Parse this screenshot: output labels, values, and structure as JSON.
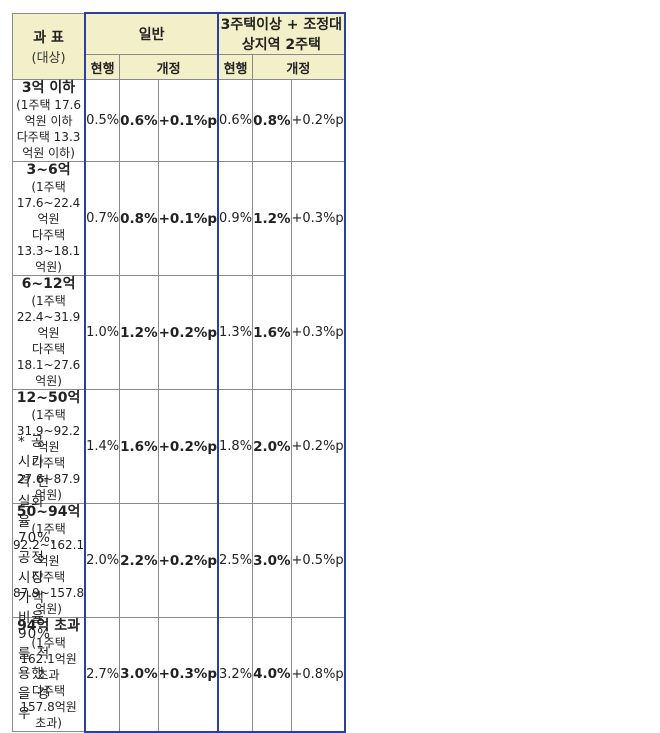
{
  "header": {
    "col_title": "과 표",
    "col_sub": "(대상)",
    "group1": "일반",
    "group2": "3주택이상 + 조정대상지역 2주택",
    "current": "현행",
    "revised": "개정"
  },
  "rows": [
    {
      "title": "3억 이하",
      "line1": "(1주택 17.6억원 이하",
      "line2": "다주택 13.3억원 이하)",
      "g_cur": "0.5%",
      "g_rev": "0.6%",
      "g_diff": "+0.1%p",
      "m_cur": "0.6%",
      "m_rev": "0.8%",
      "m_diff": "+0.2%p"
    },
    {
      "title": "3~6억",
      "line1": "(1주택 17.6~22.4억원",
      "line2": "다주택 13.3~18.1억원)",
      "g_cur": "0.7%",
      "g_rev": "0.8%",
      "g_diff": "+0.1%p",
      "m_cur": "0.9%",
      "m_rev": "1.2%",
      "m_diff": "+0.3%p"
    },
    {
      "title": "6~12억",
      "line1": "(1주택 22.4~31.9억원",
      "line2": "다주택 18.1~27.6억원)",
      "g_cur": "1.0%",
      "g_rev": "1.2%",
      "g_diff": "+0.2%p",
      "m_cur": "1.3%",
      "m_rev": "1.6%",
      "m_diff": "+0.3%p"
    },
    {
      "title": "12~50억",
      "line1": "(1주택 31.9~92.2억원",
      "line2": "다주택 27.6~87.9억원)",
      "g_cur": "1.4%",
      "g_rev": "1.6%",
      "g_diff": "+0.2%p",
      "m_cur": "1.8%",
      "m_rev": "2.0%",
      "m_diff": "+0.2%p"
    },
    {
      "title": "50~94억",
      "line1": "(1주택 92.2~162.1억원",
      "line2": "다주택 87.9~157.8억원)",
      "g_cur": "2.0%",
      "g_rev": "2.2%",
      "g_diff": "+0.2%p",
      "m_cur": "2.5%",
      "m_rev": "3.0%",
      "m_diff": "+0.5%p"
    },
    {
      "title": "94억 초과",
      "line1": "(1주택 162.1억원 초과",
      "line2": "다주택 157.8억원 초과)",
      "g_cur": "2.7%",
      "g_rev": "3.0%",
      "g_diff": "+0.3%p",
      "m_cur": "3.2%",
      "m_rev": "4.0%",
      "m_diff": "+0.8%p"
    }
  ],
  "footnote": "* 공시가격 현실화율 70%, 공정시장가액비율 90%를 적용했을 경우"
}
